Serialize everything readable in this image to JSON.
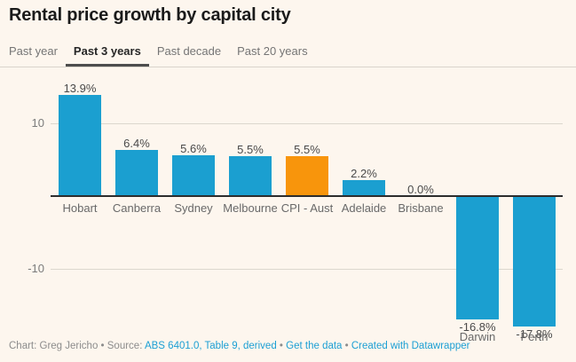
{
  "page": {
    "background": "#fdf6ee"
  },
  "header": {
    "title": "Rental price growth by capital city"
  },
  "tabs": [
    {
      "label": "Past year",
      "active": false
    },
    {
      "label": "Past 3 years",
      "active": true
    },
    {
      "label": "Past decade",
      "active": false
    },
    {
      "label": "Past 20 years",
      "active": false
    }
  ],
  "chart_data": {
    "type": "bar",
    "title": "Rental price growth by capital city",
    "categories": [
      "Hobart",
      "Canberra",
      "Sydney",
      "Melbourne",
      "CPI - Aust",
      "Adelaide",
      "Brisbane",
      "Darwin",
      "Perth"
    ],
    "values": [
      13.9,
      6.4,
      5.6,
      5.5,
      5.5,
      2.2,
      0.0,
      -16.8,
      -17.8
    ],
    "value_labels": [
      "13.9%",
      "6.4%",
      "5.6%",
      "5.5%",
      "5.5%",
      "2.2%",
      "0.0%",
      "-16.8%",
      "-17.8%"
    ],
    "unit": "%",
    "highlight_index": 4,
    "colors": {
      "bar": "#1b9fd0",
      "highlight": "#f8950c"
    },
    "yticks": [
      {
        "label": "10",
        "value": 10
      },
      {
        "label": "-10",
        "value": -10
      }
    ],
    "ylim": [
      -19,
      15
    ],
    "grid": true,
    "legend": "none",
    "xlabel": "",
    "ylabel": ""
  },
  "footer": {
    "segments": [
      {
        "type": "text",
        "text": "Chart: Greg Jericho • Source: "
      },
      {
        "type": "link",
        "text": "ABS 6401.0, Table 9, derived"
      },
      {
        "type": "text",
        "text": " • "
      },
      {
        "type": "link",
        "text": "Get the data"
      },
      {
        "type": "text",
        "text": " • "
      },
      {
        "type": "link",
        "text": "Created with Datawrapper"
      }
    ]
  }
}
